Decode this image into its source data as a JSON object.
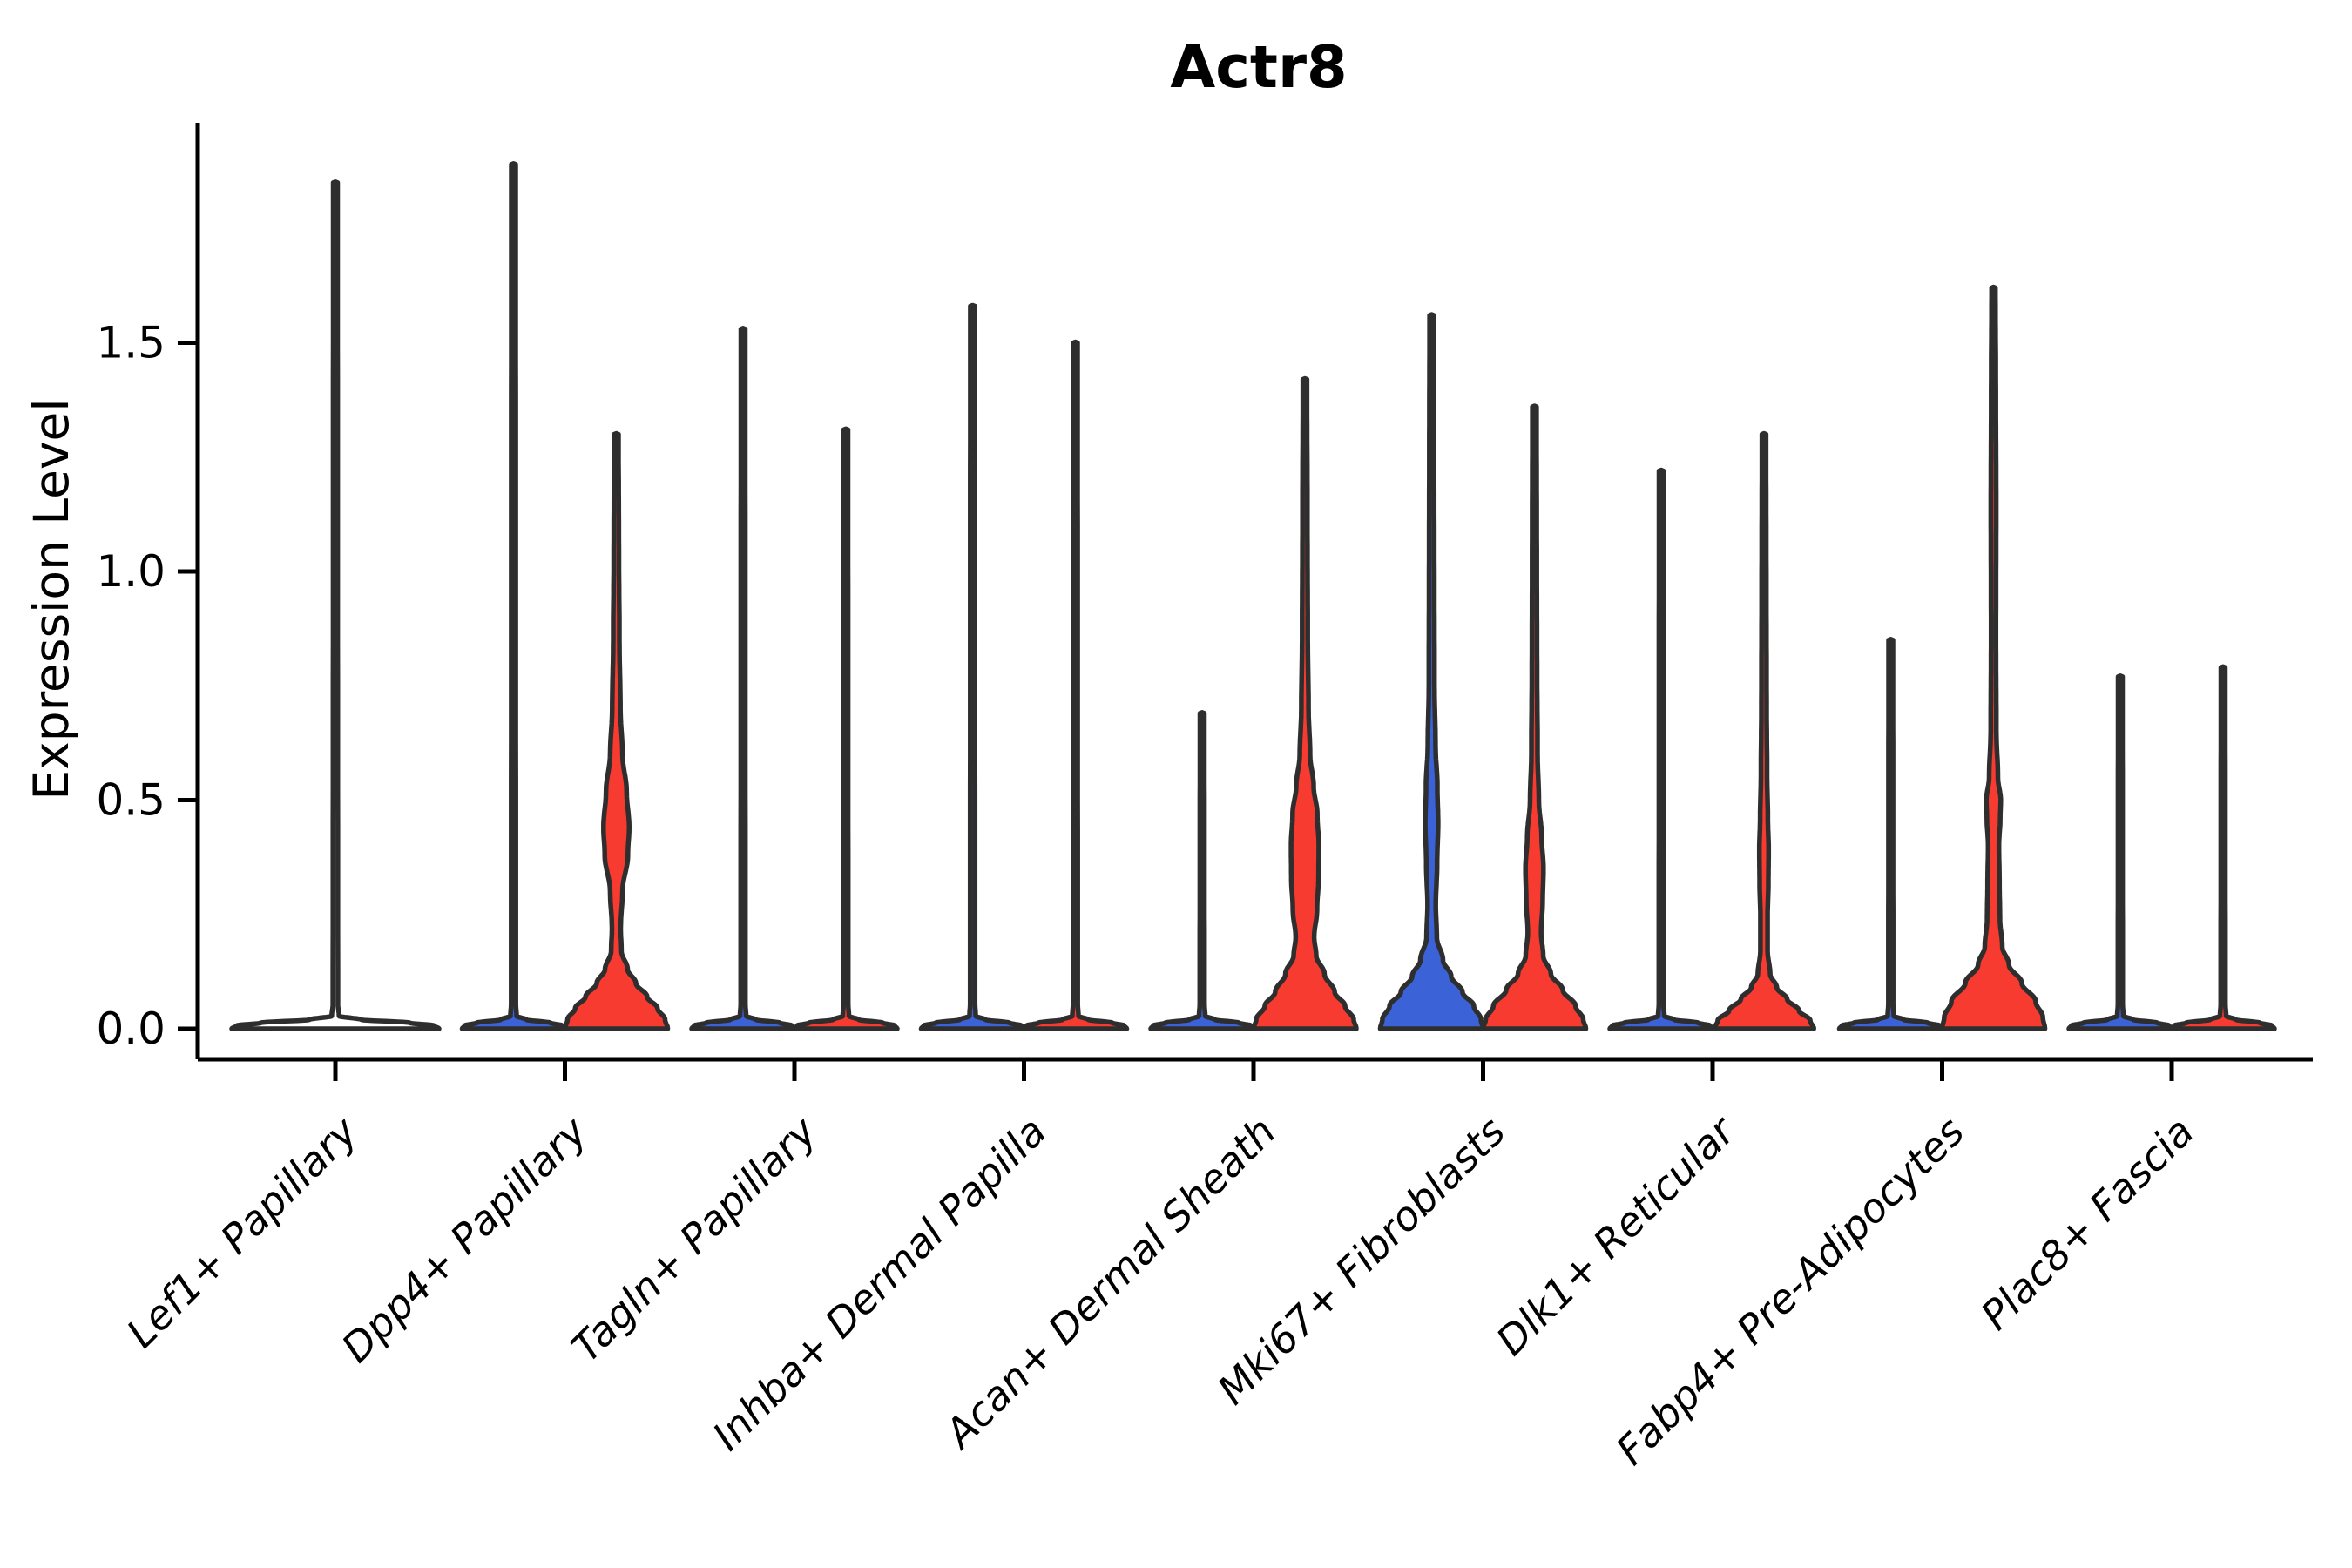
{
  "chart_data": {
    "type": "violin",
    "title": "Actr8",
    "ylabel": "Expression Level",
    "xlabel": "",
    "grid": false,
    "legend": "none",
    "ytick_values": [
      0.0,
      0.5,
      1.0,
      1.5
    ],
    "ytick_labels": [
      "0.0",
      "0.5",
      "1.0",
      "1.5"
    ],
    "ylim": [
      -0.07,
      1.98
    ],
    "axis_color": "#000000",
    "outline_color": "#2e2e2e",
    "fill_colors": {
      "blue": "#3b62d6",
      "red": "#f83b30",
      "white": "#ffffff"
    },
    "categories": [
      "Lef1+ Papillary",
      "Dpp4+ Papillary",
      "Tagln+ Papillary",
      "Inhba+ Dermal Papilla",
      "Acan+ Dermal Sheath",
      "Mki67+ Fibroblasts",
      "Dlk1+ Reticular",
      "Fabp4+ Pre-Adipocytes",
      "Plac8+ Fascia"
    ],
    "violins": [
      {
        "category_index": 0,
        "category": "Lef1+ Papillary",
        "slot": "full",
        "fill": "white",
        "max_expression": 1.85,
        "profile": [
          [
            0,
            1.0
          ],
          [
            0.007,
            0.95
          ],
          [
            0.013,
            0.72
          ],
          [
            0.02,
            0.25
          ],
          [
            0.028,
            0.035
          ],
          [
            0.055,
            0.024
          ],
          [
            1.0,
            0.022
          ],
          [
            1.85,
            0.021
          ]
        ]
      },
      {
        "category_index": 1,
        "category": "Dpp4+ Papillary",
        "slot": "left",
        "fill": "blue",
        "max_expression": 1.89,
        "profile": [
          [
            0,
            1.0
          ],
          [
            0.007,
            0.95
          ],
          [
            0.013,
            0.72
          ],
          [
            0.02,
            0.25
          ],
          [
            0.028,
            0.06
          ],
          [
            0.055,
            0.046
          ],
          [
            1.04,
            0.044
          ],
          [
            1.89,
            0.042
          ]
        ]
      },
      {
        "category_index": 1,
        "category": "Dpp4+ Papillary",
        "slot": "right",
        "fill": "red",
        "max_expression": 1.3,
        "profile": [
          [
            0,
            1.0
          ],
          [
            0.02,
            0.95
          ],
          [
            0.045,
            0.8
          ],
          [
            0.07,
            0.6
          ],
          [
            0.1,
            0.38
          ],
          [
            0.13,
            0.22
          ],
          [
            0.17,
            0.1
          ],
          [
            0.22,
            0.085
          ],
          [
            0.3,
            0.12
          ],
          [
            0.38,
            0.225
          ],
          [
            0.44,
            0.25
          ],
          [
            0.52,
            0.2
          ],
          [
            0.6,
            0.12
          ],
          [
            0.7,
            0.08
          ],
          [
            0.85,
            0.06
          ],
          [
            1.05,
            0.05
          ],
          [
            1.3,
            0.042
          ]
        ]
      },
      {
        "category_index": 2,
        "category": "Tagln+ Papillary",
        "slot": "left",
        "fill": "blue",
        "max_expression": 1.53,
        "profile": [
          [
            0,
            1.0
          ],
          [
            0.007,
            0.95
          ],
          [
            0.013,
            0.72
          ],
          [
            0.02,
            0.25
          ],
          [
            0.028,
            0.06
          ],
          [
            0.055,
            0.046
          ],
          [
            0.84,
            0.044
          ],
          [
            1.53,
            0.042
          ]
        ]
      },
      {
        "category_index": 2,
        "category": "Tagln+ Papillary",
        "slot": "right",
        "fill": "red",
        "max_expression": 1.31,
        "profile": [
          [
            0,
            1.0
          ],
          [
            0.007,
            0.95
          ],
          [
            0.013,
            0.72
          ],
          [
            0.02,
            0.25
          ],
          [
            0.028,
            0.06
          ],
          [
            0.055,
            0.046
          ],
          [
            0.72,
            0.044
          ],
          [
            1.31,
            0.042
          ]
        ]
      },
      {
        "category_index": 3,
        "category": "Inhba+ Dermal Papilla",
        "slot": "left",
        "fill": "blue",
        "max_expression": 1.58,
        "profile": [
          [
            0,
            1.0
          ],
          [
            0.007,
            0.95
          ],
          [
            0.013,
            0.72
          ],
          [
            0.02,
            0.25
          ],
          [
            0.028,
            0.06
          ],
          [
            0.055,
            0.048
          ],
          [
            0.87,
            0.046
          ],
          [
            1.58,
            0.044
          ]
        ]
      },
      {
        "category_index": 3,
        "category": "Inhba+ Dermal Papilla",
        "slot": "right",
        "fill": "red",
        "max_expression": 1.5,
        "profile": [
          [
            0,
            1.0
          ],
          [
            0.007,
            0.95
          ],
          [
            0.013,
            0.72
          ],
          [
            0.02,
            0.25
          ],
          [
            0.028,
            0.06
          ],
          [
            0.055,
            0.046
          ],
          [
            0.82,
            0.044
          ],
          [
            1.5,
            0.042
          ]
        ]
      },
      {
        "category_index": 4,
        "category": "Acan+ Dermal Sheath",
        "slot": "left",
        "fill": "blue",
        "max_expression": 0.69,
        "profile": [
          [
            0,
            1.0
          ],
          [
            0.007,
            0.95
          ],
          [
            0.013,
            0.72
          ],
          [
            0.02,
            0.25
          ],
          [
            0.028,
            0.06
          ],
          [
            0.055,
            0.046
          ],
          [
            0.38,
            0.044
          ],
          [
            0.69,
            0.042
          ]
        ]
      },
      {
        "category_index": 4,
        "category": "Acan+ Dermal Sheath",
        "slot": "right",
        "fill": "red",
        "max_expression": 1.42,
        "profile": [
          [
            0,
            1.0
          ],
          [
            0.02,
            0.95
          ],
          [
            0.05,
            0.78
          ],
          [
            0.08,
            0.58
          ],
          [
            0.12,
            0.38
          ],
          [
            0.16,
            0.22
          ],
          [
            0.2,
            0.18
          ],
          [
            0.26,
            0.235
          ],
          [
            0.33,
            0.265
          ],
          [
            0.4,
            0.27
          ],
          [
            0.47,
            0.24
          ],
          [
            0.53,
            0.17
          ],
          [
            0.6,
            0.1
          ],
          [
            0.7,
            0.07
          ],
          [
            0.85,
            0.055
          ],
          [
            1.1,
            0.048
          ],
          [
            1.42,
            0.04
          ]
        ]
      },
      {
        "category_index": 5,
        "category": "Mki67+ Fibroblasts",
        "slot": "left",
        "fill": "blue",
        "max_expression": 1.56,
        "profile": [
          [
            0,
            1.0
          ],
          [
            0.02,
            0.96
          ],
          [
            0.05,
            0.82
          ],
          [
            0.08,
            0.6
          ],
          [
            0.115,
            0.38
          ],
          [
            0.15,
            0.22
          ],
          [
            0.2,
            0.1
          ],
          [
            0.27,
            0.08
          ],
          [
            0.36,
            0.105
          ],
          [
            0.45,
            0.125
          ],
          [
            0.53,
            0.11
          ],
          [
            0.62,
            0.075
          ],
          [
            0.75,
            0.055
          ],
          [
            1.0,
            0.05
          ],
          [
            1.3,
            0.045
          ],
          [
            1.56,
            0.04
          ]
        ]
      },
      {
        "category_index": 5,
        "category": "Mki67+ Fibroblasts",
        "slot": "right",
        "fill": "red",
        "max_expression": 1.36,
        "profile": [
          [
            0,
            1.0
          ],
          [
            0.02,
            0.95
          ],
          [
            0.05,
            0.8
          ],
          [
            0.085,
            0.55
          ],
          [
            0.12,
            0.32
          ],
          [
            0.16,
            0.17
          ],
          [
            0.21,
            0.13
          ],
          [
            0.28,
            0.16
          ],
          [
            0.35,
            0.175
          ],
          [
            0.42,
            0.14
          ],
          [
            0.5,
            0.085
          ],
          [
            0.6,
            0.06
          ],
          [
            0.8,
            0.05
          ],
          [
            1.05,
            0.045
          ],
          [
            1.36,
            0.04
          ]
        ]
      },
      {
        "category_index": 6,
        "category": "Dlk1+ Reticular",
        "slot": "left",
        "fill": "blue",
        "max_expression": 1.22,
        "profile": [
          [
            0,
            1.0
          ],
          [
            0.007,
            0.95
          ],
          [
            0.013,
            0.72
          ],
          [
            0.02,
            0.25
          ],
          [
            0.028,
            0.06
          ],
          [
            0.055,
            0.046
          ],
          [
            0.67,
            0.044
          ],
          [
            1.22,
            0.042
          ]
        ]
      },
      {
        "category_index": 6,
        "category": "Dlk1+ Reticular",
        "slot": "right",
        "fill": "red",
        "max_expression": 1.3,
        "profile": [
          [
            0,
            0.97
          ],
          [
            0.018,
            0.9
          ],
          [
            0.04,
            0.68
          ],
          [
            0.065,
            0.45
          ],
          [
            0.09,
            0.25
          ],
          [
            0.12,
            0.12
          ],
          [
            0.17,
            0.07
          ],
          [
            0.25,
            0.07
          ],
          [
            0.32,
            0.085
          ],
          [
            0.39,
            0.09
          ],
          [
            0.46,
            0.075
          ],
          [
            0.55,
            0.06
          ],
          [
            0.72,
            0.05
          ],
          [
            1.0,
            0.045
          ],
          [
            1.3,
            0.04
          ]
        ]
      },
      {
        "category_index": 7,
        "category": "Fabp4+ Pre-Adipocytes",
        "slot": "left",
        "fill": "blue",
        "max_expression": 0.85,
        "profile": [
          [
            0,
            1.0
          ],
          [
            0.007,
            0.95
          ],
          [
            0.013,
            0.72
          ],
          [
            0.02,
            0.25
          ],
          [
            0.028,
            0.06
          ],
          [
            0.055,
            0.046
          ],
          [
            0.47,
            0.044
          ],
          [
            0.85,
            0.042
          ]
        ]
      },
      {
        "category_index": 7,
        "category": "Fabp4+ Pre-Adipocytes",
        "slot": "right",
        "fill": "red",
        "max_expression": 1.62,
        "profile": [
          [
            0,
            1.0
          ],
          [
            0.025,
            0.96
          ],
          [
            0.06,
            0.82
          ],
          [
            0.1,
            0.55
          ],
          [
            0.14,
            0.3
          ],
          [
            0.18,
            0.17
          ],
          [
            0.24,
            0.125
          ],
          [
            0.32,
            0.115
          ],
          [
            0.4,
            0.105
          ],
          [
            0.46,
            0.13
          ],
          [
            0.5,
            0.14
          ],
          [
            0.55,
            0.085
          ],
          [
            0.65,
            0.055
          ],
          [
            0.85,
            0.048
          ],
          [
            1.15,
            0.052
          ],
          [
            1.4,
            0.045
          ],
          [
            1.62,
            0.038
          ]
        ]
      },
      {
        "category_index": 8,
        "category": "Plac8+ Fascia",
        "slot": "left",
        "fill": "blue",
        "max_expression": 0.77,
        "profile": [
          [
            0,
            1.0
          ],
          [
            0.007,
            0.95
          ],
          [
            0.013,
            0.72
          ],
          [
            0.02,
            0.25
          ],
          [
            0.028,
            0.06
          ],
          [
            0.055,
            0.046
          ],
          [
            0.42,
            0.044
          ],
          [
            0.77,
            0.042
          ]
        ]
      },
      {
        "category_index": 8,
        "category": "Plac8+ Fascia",
        "slot": "right",
        "fill": "red",
        "max_expression": 0.79,
        "profile": [
          [
            0,
            1.0
          ],
          [
            0.007,
            0.95
          ],
          [
            0.013,
            0.72
          ],
          [
            0.02,
            0.25
          ],
          [
            0.028,
            0.06
          ],
          [
            0.055,
            0.046
          ],
          [
            0.43,
            0.044
          ],
          [
            0.79,
            0.042
          ]
        ]
      }
    ]
  }
}
